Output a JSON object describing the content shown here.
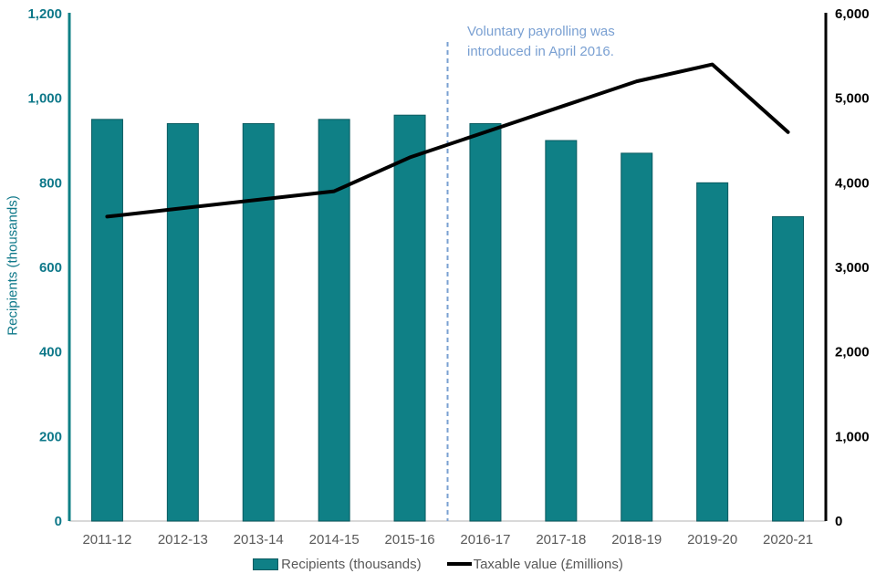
{
  "chart_data": {
    "type": "bar",
    "subtype": "combo-bar-line-dual-axis",
    "categories": [
      "2011-12",
      "2012-13",
      "2013-14",
      "2014-15",
      "2015-16",
      "2016-17",
      "2017-18",
      "2018-19",
      "2019-20",
      "2020-21"
    ],
    "series": [
      {
        "name": "Recipients (thousands)",
        "chart_type": "bar",
        "axis": "left",
        "values": [
          950,
          940,
          940,
          950,
          960,
          940,
          900,
          870,
          800,
          720
        ]
      },
      {
        "name": "Taxable value (£millions)",
        "chart_type": "line",
        "axis": "right",
        "values": [
          3600,
          3700,
          3800,
          3900,
          4300,
          4600,
          4900,
          5200,
          5400,
          4600
        ]
      }
    ],
    "left_axis": {
      "title": "Recipients (thousands)",
      "range": [
        0,
        1200
      ],
      "ticks": [
        "0",
        "200",
        "400",
        "600",
        "800",
        "1,000",
        "1,200"
      ]
    },
    "right_axis": {
      "range": [
        0,
        6000
      ],
      "ticks": [
        "0",
        "1,000",
        "2,000",
        "3,000",
        "4,000",
        "5,000",
        "6,000"
      ]
    },
    "annotation": {
      "lines": [
        "Voluntary payrolling was",
        "introduced in April 2016."
      ],
      "divider_between": [
        "2015-16",
        "2016-17"
      ]
    },
    "legend_position": "bottom",
    "grid": false,
    "colors": {
      "bar_fill": "#0F8086",
      "bar_border": "#0A5A60",
      "line": "#000000",
      "left_axis": "#0F8086",
      "left_axis_text": "#0E7889",
      "right_axis": "#000000",
      "right_axis_text": "#000000",
      "category_text": "#595959",
      "legend_text": "#595959",
      "annotation": "#7AA0D2",
      "baseline": "#D9D9D9"
    }
  }
}
